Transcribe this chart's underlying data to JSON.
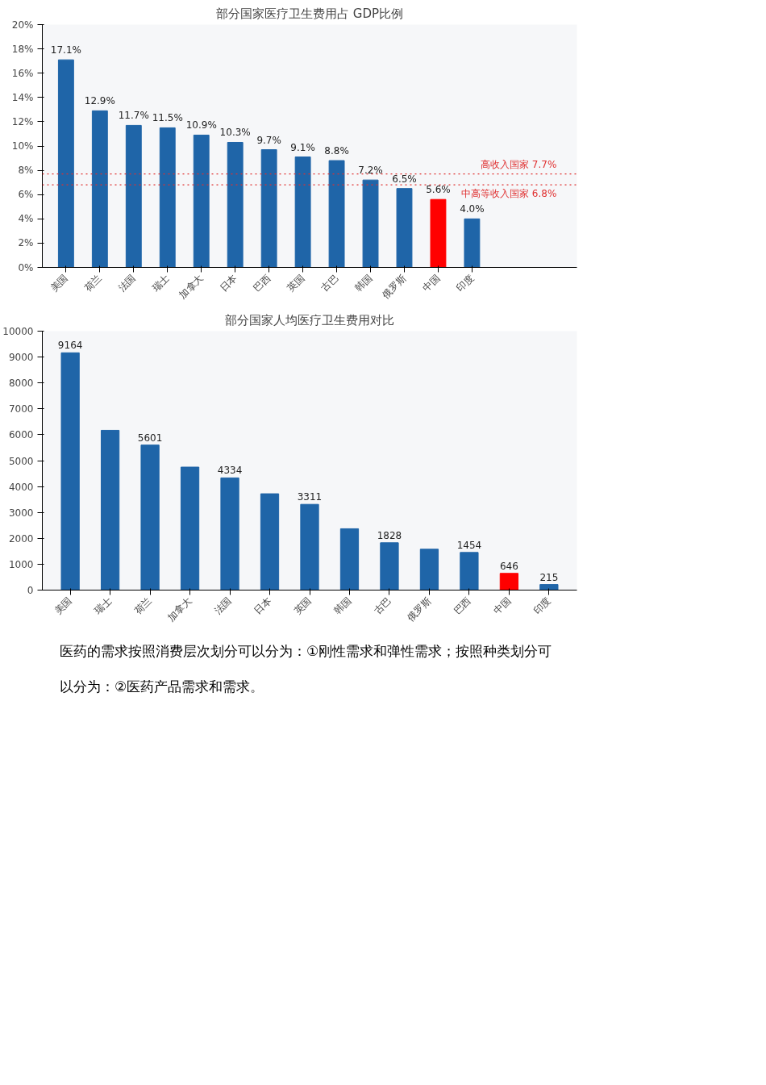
{
  "chart_data": [
    {
      "type": "bar",
      "title": "部分国家医疗卫生费用占 GDP比例",
      "categories": [
        "美国",
        "荷兰",
        "法国",
        "瑞士",
        "加拿大",
        "日本",
        "巴西",
        "英国",
        "古巴",
        "韩国",
        "俄罗斯",
        "中国",
        "印度"
      ],
      "values": [
        17.1,
        12.9,
        11.7,
        11.5,
        10.9,
        10.3,
        9.7,
        9.1,
        8.8,
        7.2,
        6.5,
        5.6,
        4.0
      ],
      "colors": [
        "#1f65a8",
        "#1f65a8",
        "#1f65a8",
        "#1f65a8",
        "#1f65a8",
        "#1f65a8",
        "#1f65a8",
        "#1f65a8",
        "#1f65a8",
        "#1f65a8",
        "#1f65a8",
        "#ff0000",
        "#1f65a8"
      ],
      "value_labels": [
        "17.1%",
        "12.9%",
        "11.7%",
        "11.5%",
        "10.9%",
        "10.3%",
        "9.7%",
        "9.1%",
        "8.8%",
        "7.2%",
        "6.5%",
        "5.6%",
        "4.0%"
      ],
      "ylim": [
        0,
        20
      ],
      "yticks": [
        {
          "value": 0,
          "label": "0%"
        },
        {
          "value": 2,
          "label": "2%"
        },
        {
          "value": 4,
          "label": "4%"
        },
        {
          "value": 6,
          "label": "6%"
        },
        {
          "value": 8,
          "label": "8%"
        },
        {
          "value": 10,
          "label": "10%"
        },
        {
          "value": 12,
          "label": "12%"
        },
        {
          "value": 14,
          "label": "14%"
        },
        {
          "value": 16,
          "label": "16%"
        },
        {
          "value": 18,
          "label": "18%"
        },
        {
          "value": 20,
          "label": "20%"
        }
      ],
      "ref_lines": [
        {
          "axis": "y",
          "value": 7.7,
          "label": "高收入国家 7.7%",
          "color": "#e03030",
          "line_style": "dotted"
        },
        {
          "axis": "y",
          "value": 6.8,
          "label": "中高等收入国家 6.8%",
          "color": "#e03030",
          "line_style": "dotted"
        }
      ],
      "grid": false
    },
    {
      "type": "bar",
      "title": "部分国家人均医疗卫生费用对比",
      "categories": [
        "美国",
        "瑞士",
        "荷兰",
        "加拿大",
        "法国",
        "日本",
        "英国",
        "韩国",
        "古巴",
        "俄罗斯",
        "巴西",
        "中国",
        "印度"
      ],
      "values": [
        9164,
        6170,
        5601,
        4750,
        4334,
        3720,
        3311,
        2370,
        1828,
        1580,
        1454,
        646,
        215
      ],
      "colors": [
        "#1f65a8",
        "#1f65a8",
        "#1f65a8",
        "#1f65a8",
        "#1f65a8",
        "#1f65a8",
        "#1f65a8",
        "#1f65a8",
        "#1f65a8",
        "#1f65a8",
        "#1f65a8",
        "#ff0000",
        "#1f65a8"
      ],
      "value_labels": [
        "9164",
        null,
        "5601",
        null,
        "4334",
        null,
        "3311",
        null,
        "1828",
        null,
        "1454",
        "646",
        "215"
      ],
      "ylim": [
        0,
        10000
      ],
      "yticks": [
        0,
        1000,
        2000,
        3000,
        4000,
        5000,
        6000,
        7000,
        8000,
        9000,
        10000
      ],
      "grid": false,
      "annotations": [
        "医药的需求按照消费层次划分可以分为：①刚性需求和弹性需求；按照种类划分可以分为：②医药产品需求和需求。"
      ]
    }
  ]
}
